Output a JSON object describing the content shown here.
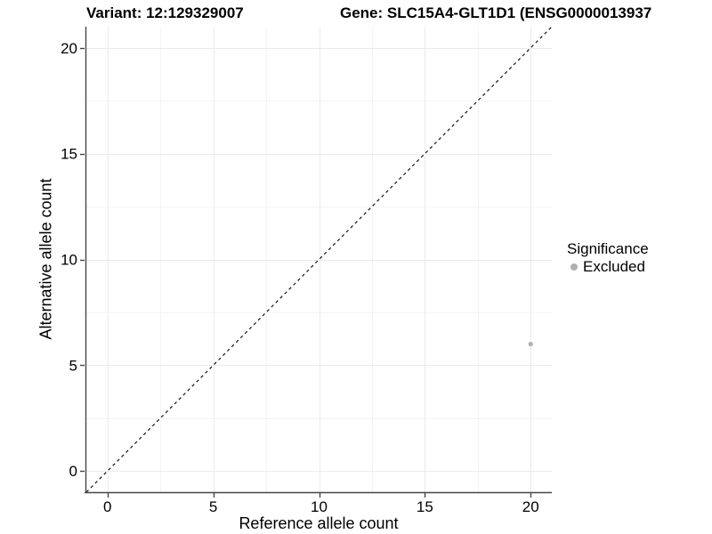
{
  "header": {
    "variant_title": "Variant: 12:129329007",
    "gene_title": "Gene: SLC15A4-GLT1D1 (ENSG0000013937"
  },
  "axes": {
    "x_label": "Reference allele count",
    "y_label": "Alternative allele count"
  },
  "legend": {
    "title": "Significance",
    "items": [
      {
        "label": "Excluded",
        "color": "#b0b0b0"
      }
    ]
  },
  "colors": {
    "background": "#ffffff",
    "grid_major": "#ebebeb",
    "grid_minor": "#f4f4f4",
    "axis_line": "#464646",
    "tick_mark": "#464646",
    "text": "#000000",
    "point": "#b0b0b0",
    "reference_line": "#111111"
  },
  "chart_data": {
    "type": "scatter",
    "title": "Variant: 12:129329007   Gene: SLC15A4-GLT1D1 (ENSG0000013937",
    "xlabel": "Reference allele count",
    "ylabel": "Alternative allele count",
    "xlim": [
      -1,
      21
    ],
    "ylim": [
      -1,
      21
    ],
    "x_ticks": [
      0,
      5,
      10,
      15,
      20
    ],
    "y_ticks": [
      0,
      5,
      10,
      15,
      20
    ],
    "x_minor_ticks": [
      2.5,
      7.5,
      12.5,
      17.5
    ],
    "y_minor_ticks": [
      2.5,
      7.5,
      12.5,
      17.5
    ],
    "grid": true,
    "legend_position": "right",
    "series": [
      {
        "name": "Excluded",
        "color": "#b0b0b0",
        "points": [
          {
            "x": 20,
            "y": 6
          }
        ]
      }
    ],
    "reference_line": {
      "meaning": "identity y = x",
      "style": "dashed",
      "color": "#111111",
      "from": {
        "x": -1,
        "y": -1
      },
      "to": {
        "x": 21,
        "y": 21
      }
    }
  }
}
